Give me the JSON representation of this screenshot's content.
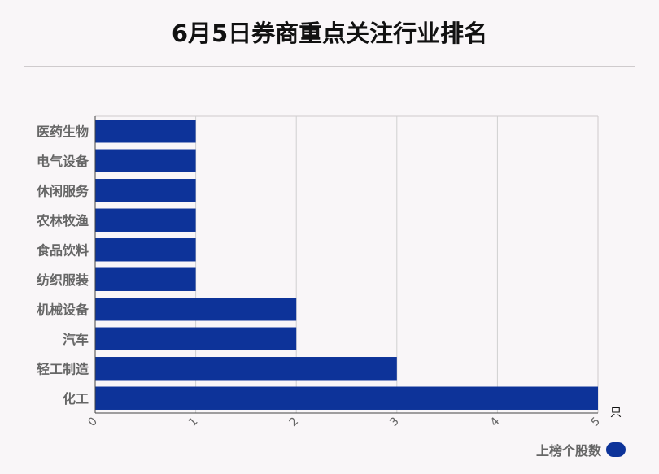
{
  "title": "6月5日券商重点关注行业排名",
  "chart_data": {
    "type": "bar",
    "orientation": "horizontal",
    "categories": [
      "医药生物",
      "电气设备",
      "休闲服务",
      "农林牧渔",
      "食品饮料",
      "纺织服装",
      "机械设备",
      "汽车",
      "轻工制造",
      "化工"
    ],
    "series": [
      {
        "name": "上榜个股数",
        "values": [
          1,
          1,
          1,
          1,
          1,
          1,
          2,
          2,
          3,
          5
        ],
        "color": "#0d3399"
      }
    ],
    "xlim": [
      0,
      5
    ],
    "xticks": [
      "0",
      "1",
      "2",
      "3",
      "4",
      "5"
    ],
    "x_unit": "只",
    "grid": true,
    "legend_position": "bottom-right"
  }
}
